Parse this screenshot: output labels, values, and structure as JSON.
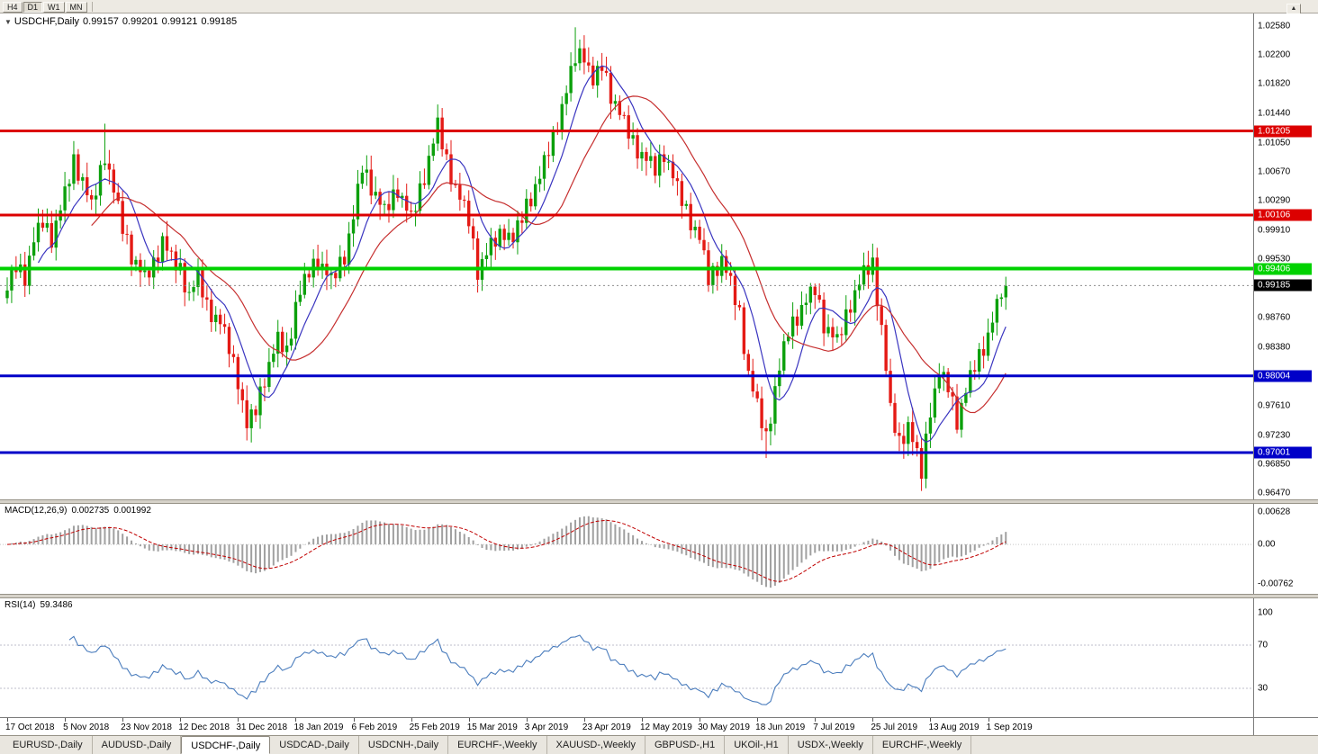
{
  "icons": {
    "dropdown": "▼",
    "toolbar_arrow": "▲"
  },
  "toolbar": {
    "timeframes": [
      {
        "label": "H4",
        "active": false
      },
      {
        "label": "D1",
        "active": true
      },
      {
        "label": "W1",
        "active": false
      },
      {
        "label": "MN",
        "active": false
      }
    ]
  },
  "header": {
    "title": "USDCHF,Daily",
    "open": "0.99157",
    "high": "0.99201",
    "low": "0.99121",
    "close": "0.99185"
  },
  "price_axis": {
    "ticks": [
      {
        "label": "1.02580",
        "value": 1.0258
      },
      {
        "label": "1.02200",
        "value": 1.022
      },
      {
        "label": "1.01820",
        "value": 1.0182
      },
      {
        "label": "1.01440",
        "value": 1.0144
      },
      {
        "label": "1.01050",
        "value": 1.0105
      },
      {
        "label": "1.00670",
        "value": 1.0067
      },
      {
        "label": "1.00290",
        "value": 1.0029
      },
      {
        "label": "0.99910",
        "value": 0.9991
      },
      {
        "label": "0.99530",
        "value": 0.9953
      },
      {
        "label": "0.98760",
        "value": 0.9876
      },
      {
        "label": "0.98380",
        "value": 0.9838
      },
      {
        "label": "0.97610",
        "value": 0.9761
      },
      {
        "label": "0.97230",
        "value": 0.9723
      },
      {
        "label": "0.96850",
        "value": 0.9685
      },
      {
        "label": "0.96470",
        "value": 0.9647
      }
    ]
  },
  "levels": [
    {
      "label": "1.01205",
      "value": 1.01205,
      "color": "#dc0000",
      "thickness": 3
    },
    {
      "label": "1.00106",
      "value": 1.00106,
      "color": "#dc0000",
      "thickness": 3
    },
    {
      "label": "0.99406",
      "value": 0.99406,
      "color": "#00d200",
      "thickness": 4
    },
    {
      "label": "0.98004",
      "value": 0.98004,
      "color": "#0000c8",
      "thickness": 3
    },
    {
      "label": "0.97001",
      "value": 0.97001,
      "color": "#0000c8",
      "thickness": 3
    }
  ],
  "current_price": {
    "label": "0.99185",
    "value": 0.99185
  },
  "macd_panel": {
    "name": "MACD(12,26,9)",
    "value1": "0.002735",
    "value2": "0.001992"
  },
  "rsi_panel": {
    "name": "RSI(14)",
    "value": "59.3486"
  },
  "tabs": {
    "active_index": 2,
    "items": [
      {
        "label": "EURUSD-,Daily"
      },
      {
        "label": "AUDUSD-,Daily"
      },
      {
        "label": "USDCHF-,Daily"
      },
      {
        "label": "USDCAD-,Daily"
      },
      {
        "label": "USDCNH-,Daily"
      },
      {
        "label": "EURCHF-,Weekly"
      },
      {
        "label": "XAUUSD-,Weekly"
      },
      {
        "label": "GBPUSD-,H1"
      },
      {
        "label": "UKOil-,H1"
      },
      {
        "label": "USDX-,Weekly"
      },
      {
        "label": "EURCHF-,Weekly"
      }
    ]
  },
  "colors": {
    "bull": "#0ca00c",
    "bear": "#e41a15",
    "ma_fast": "#3a35c0",
    "ma_slow": "#c62f2f",
    "macd_histogram": "#a0a0a0",
    "macd_signal": "#c00000",
    "rsi_line": "#4b7dbd",
    "rsi_level_line": "#bcbccb",
    "current_price_line": "#8c8c8c"
  },
  "chart_data": {
    "type": "candlestick",
    "title": "USDCHF Daily with MACD(12,26,9) and RSI(14)",
    "num_candles": 226,
    "price_max_visible": 1.0274,
    "price_min_visible": 0.9639,
    "dates": [
      "17 Oct 2018",
      "5 Nov 2018",
      "23 Nov 2018",
      "12 Dec 2018",
      "31 Dec 2018",
      "18 Jan 2019",
      "6 Feb 2019",
      "25 Feb 2019",
      "15 Mar 2019",
      "3 Apr 2019",
      "23 Apr 2019",
      "12 May 2019",
      "30 May 2019",
      "18 Jun 2019",
      "7 Jul 2019",
      "25 Jul 2019",
      "13 Aug 2019",
      "1 Sep 2019"
    ],
    "candles_per_date_label": 13,
    "close_anchors": [
      [
        0,
        0.9912
      ],
      [
        2,
        0.9942
      ],
      [
        4,
        0.993
      ],
      [
        6,
        0.9975
      ],
      [
        8,
        1.0
      ],
      [
        10,
        0.998
      ],
      [
        13,
        1.0035
      ],
      [
        15,
        1.008
      ],
      [
        17,
        1.0055
      ],
      [
        19,
        1.0018
      ],
      [
        22,
        1.009
      ],
      [
        24,
        1.004
      ],
      [
        26,
        0.9992
      ],
      [
        28,
        0.9958
      ],
      [
        31,
        0.9925
      ],
      [
        33,
        0.9945
      ],
      [
        35,
        0.9978
      ],
      [
        37,
        0.995
      ],
      [
        39,
        0.9938
      ],
      [
        41,
        0.9905
      ],
      [
        43,
        0.9928
      ],
      [
        45,
        0.989
      ],
      [
        48,
        0.9868
      ],
      [
        50,
        0.9835
      ],
      [
        52,
        0.9795
      ],
      [
        54,
        0.9732
      ],
      [
        56,
        0.9755
      ],
      [
        58,
        0.9798
      ],
      [
        61,
        0.9845
      ],
      [
        63,
        0.983
      ],
      [
        65,
        0.9892
      ],
      [
        68,
        0.9935
      ],
      [
        70,
        0.9952
      ],
      [
        73,
        0.9922
      ],
      [
        76,
        0.9958
      ],
      [
        78,
        1.0005
      ],
      [
        80,
        1.0072
      ],
      [
        82,
        1.0048
      ],
      [
        85,
        1.0012
      ],
      [
        88,
        1.0045
      ],
      [
        91,
        1.0002
      ],
      [
        94,
        1.0062
      ],
      [
        97,
        1.0125
      ],
      [
        99,
        1.008
      ],
      [
        101,
        1.0045
      ],
      [
        104,
        1.0002
      ],
      [
        106,
        0.9938
      ],
      [
        109,
        0.9968
      ],
      [
        112,
        0.999
      ],
      [
        114,
        0.9975
      ],
      [
        117,
        1.0022
      ],
      [
        120,
        1.0058
      ],
      [
        123,
        1.0112
      ],
      [
        126,
        1.017
      ],
      [
        128,
        1.0215
      ],
      [
        130,
        1.0222
      ],
      [
        132,
        1.018
      ],
      [
        134,
        1.0205
      ],
      [
        136,
        1.0168
      ],
      [
        139,
        1.0128
      ],
      [
        141,
        1.0105
      ],
      [
        143,
        1.0088
      ],
      [
        146,
        1.0068
      ],
      [
        148,
        1.0092
      ],
      [
        151,
        1.0042
      ],
      [
        153,
        1.0015
      ],
      [
        156,
        0.9978
      ],
      [
        158,
        0.9925
      ],
      [
        161,
        0.9952
      ],
      [
        163,
        0.9918
      ],
      [
        165,
        0.988
      ],
      [
        167,
        0.9802
      ],
      [
        169,
        0.9758
      ],
      [
        171,
        0.9718
      ],
      [
        173,
        0.9782
      ],
      [
        176,
        0.9858
      ],
      [
        179,
        0.9888
      ],
      [
        182,
        0.9912
      ],
      [
        184,
        0.9868
      ],
      [
        187,
        0.9842
      ],
      [
        190,
        0.9895
      ],
      [
        193,
        0.9932
      ],
      [
        195,
        0.9945
      ],
      [
        197,
        0.9862
      ],
      [
        199,
        0.9752
      ],
      [
        201,
        0.9712
      ],
      [
        203,
        0.9735
      ],
      [
        206,
        0.9672
      ],
      [
        208,
        0.9758
      ],
      [
        210,
        0.98
      ],
      [
        212,
        0.9785
      ],
      [
        214,
        0.9742
      ],
      [
        216,
        0.9778
      ],
      [
        218,
        0.9812
      ],
      [
        221,
        0.9852
      ],
      [
        223,
        0.9888
      ],
      [
        225,
        0.9918
      ]
    ],
    "wiggle_pattern": [
      0,
      0.0013,
      -0.0006,
      0.001,
      -0.0012,
      0.0005
    ],
    "wick_overrides": [
      {
        "i": 22,
        "high": 1.013
      },
      {
        "i": 54,
        "low": 0.9716
      },
      {
        "i": 128,
        "high": 1.0256
      },
      {
        "i": 171,
        "low": 0.9693
      },
      {
        "i": 206,
        "low": 0.965
      }
    ],
    "moving_averages": [
      {
        "period": 8,
        "color_key": "ma_fast"
      },
      {
        "period": 20,
        "color_key": "ma_slow"
      }
    ],
    "indicators": [
      {
        "type": "macd",
        "fast": 12,
        "slow": 26,
        "signal": 9,
        "y_max": 0.0078,
        "y_min": -0.0095,
        "axis_ticks": [
          {
            "label": "0.00628",
            "value": 0.00628
          },
          {
            "label": "0.00",
            "value": 0
          },
          {
            "label": "-0.00762",
            "value": -0.00762
          }
        ]
      },
      {
        "type": "rsi",
        "period": 14,
        "levels": [
          70,
          30
        ],
        "axis_ticks": [
          {
            "label": "100",
            "value": 100
          },
          {
            "label": "70",
            "value": 70
          },
          {
            "label": "30",
            "value": 30
          }
        ]
      }
    ]
  }
}
